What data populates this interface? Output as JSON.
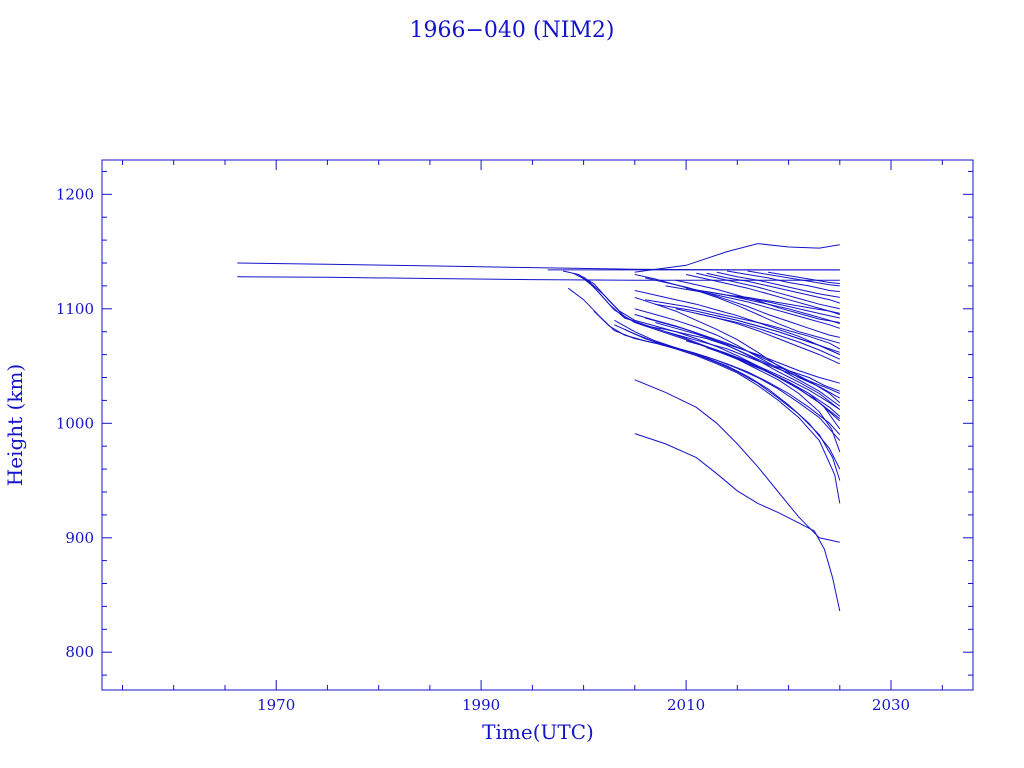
{
  "chart_data": {
    "type": "line",
    "title": "1966−040 (NIM2)",
    "xlabel": "Time(UTC)",
    "ylabel": "Height (km)",
    "xlim": [
      1953,
      2038
    ],
    "ylim": [
      767,
      1230
    ],
    "x_ticks": [
      1970,
      1990,
      2010,
      2030
    ],
    "y_ticks": [
      800,
      900,
      1000,
      1100,
      1200
    ],
    "x_minor_step": 5,
    "y_minor_step": 20,
    "grid": false,
    "legend": "none",
    "color": "#1414c8",
    "series": [
      {
        "x": [
          1966.2,
          1975,
          1985,
          1995,
          2005,
          2015,
          2025
        ],
        "y": [
          1140,
          1139,
          1137.5,
          1136,
          1134.5,
          1134,
          1134
        ]
      },
      {
        "x": [
          1966.2,
          1975,
          1985,
          1995,
          2005,
          2015,
          2025
        ],
        "y": [
          1128,
          1127.5,
          1126.5,
          1125.5,
          1125,
          1125,
          1125
        ]
      },
      {
        "x": [
          1996.5,
          2025
        ],
        "y": [
          1134,
          1134
        ]
      },
      {
        "x": [
          2005,
          2010,
          2014,
          2017,
          2020,
          2023,
          2025
        ],
        "y": [
          1132,
          1138,
          1150,
          1157,
          1154,
          1153,
          1156
        ]
      },
      {
        "x": [
          1998,
          1999.5,
          2001,
          2002.5,
          2004,
          2006,
          2008,
          2010,
          2012,
          2014,
          2016,
          2018,
          2020,
          2022,
          2023.5,
          2025
        ],
        "y": [
          1133,
          1130,
          1122,
          1107,
          1093,
          1085,
          1082,
          1078,
          1074,
          1068,
          1060,
          1052,
          1046,
          1040,
          1033,
          1028
        ]
      },
      {
        "x": [
          1999,
          2000.5,
          2002,
          2003.5,
          2005,
          2007,
          2009,
          2011,
          2013,
          2015,
          2017,
          2019,
          2021,
          2023,
          2025
        ],
        "y": [
          1131,
          1124,
          1112,
          1098,
          1090,
          1085,
          1080,
          1074,
          1067,
          1059,
          1050,
          1040,
          1030,
          1018,
          1002
        ]
      },
      {
        "x": [
          1999.5,
          2001,
          2002.5,
          2004,
          2006,
          2008,
          2010,
          2012,
          2014,
          2016,
          2018,
          2020,
          2022,
          2023.5,
          2025
        ],
        "y": [
          1130,
          1119,
          1104,
          1092,
          1086,
          1080,
          1074,
          1067,
          1060,
          1052,
          1045,
          1036,
          1026,
          1014,
          995
        ]
      },
      {
        "x": [
          2000,
          2001.5,
          2003,
          2005,
          2007,
          2009,
          2011,
          2013,
          2015,
          2017,
          2019,
          2021,
          2023,
          2024.2,
          2025
        ],
        "y": [
          1128,
          1114,
          1099,
          1088,
          1082,
          1076,
          1070,
          1063,
          1056,
          1047,
          1038,
          1026,
          1010,
          995,
          975
        ]
      },
      {
        "x": [
          1998.5,
          2000,
          2001.5,
          2003,
          2005,
          2007,
          2009,
          2011,
          2013,
          2015,
          2017,
          2019,
          2021,
          2023,
          2024.5,
          2025
        ],
        "y": [
          1118,
          1108,
          1094,
          1081,
          1074,
          1070,
          1065,
          1059,
          1052,
          1044,
          1033,
          1020,
          1005,
          985,
          955,
          930
        ]
      },
      {
        "x": [
          2001,
          2002.5,
          2004,
          2006,
          2008,
          2010,
          2012,
          2014,
          2016,
          2018,
          2020,
          2022,
          2024,
          2025
        ],
        "y": [
          1098,
          1085,
          1077,
          1072,
          1068,
          1063,
          1057,
          1050,
          1041,
          1030,
          1016,
          1000,
          978,
          960
        ]
      },
      {
        "x": [
          2003,
          2005,
          2007,
          2009,
          2011,
          2013,
          2015,
          2017,
          2019,
          2021,
          2023,
          2024.3,
          2025
        ],
        "y": [
          1090,
          1080,
          1072,
          1066,
          1060,
          1053,
          1045,
          1035,
          1022,
          1008,
          990,
          970,
          950
        ]
      },
      {
        "x": [
          2003,
          2005,
          2007,
          2009,
          2011,
          2013,
          2015,
          2017,
          2019,
          2021,
          2023,
          2025
        ],
        "y": [
          1086,
          1078,
          1071,
          1066,
          1061,
          1055,
          1048,
          1040,
          1030,
          1018,
          1005,
          985
        ]
      },
      {
        "x": [
          2004,
          2006,
          2008,
          2010,
          2012,
          2014,
          2016,
          2018,
          2020,
          2022,
          2024,
          2025
        ],
        "y": [
          1082,
          1074,
          1068,
          1063,
          1058,
          1052,
          1045,
          1036,
          1026,
          1014,
          1000,
          990
        ]
      },
      {
        "x": [
          2005,
          2007,
          2009,
          2011,
          2013,
          2015,
          2017,
          2019,
          2021,
          2023,
          2025
        ],
        "y": [
          1110,
          1104,
          1098,
          1090,
          1082,
          1073,
          1062,
          1050,
          1040,
          1032,
          1022
        ]
      },
      {
        "x": [
          2005,
          2007,
          2009,
          2011,
          2013,
          2015,
          2017,
          2019,
          2021,
          2023,
          2025
        ],
        "y": [
          1100,
          1095,
          1090,
          1084,
          1077,
          1068,
          1058,
          1048,
          1038,
          1028,
          1015
        ]
      },
      {
        "x": [
          2005,
          2007,
          2009,
          2011,
          2013,
          2015,
          2017,
          2019,
          2021,
          2023,
          2025
        ],
        "y": [
          1095,
          1090,
          1085,
          1079,
          1072,
          1064,
          1055,
          1045,
          1036,
          1026,
          1012
        ]
      },
      {
        "x": [
          2006,
          2008,
          2010,
          2012,
          2014,
          2016,
          2018,
          2020,
          2022,
          2024,
          2025
        ],
        "y": [
          1092,
          1087,
          1082,
          1076,
          1070,
          1063,
          1055,
          1046,
          1037,
          1026,
          1018
        ]
      },
      {
        "x": [
          2007,
          2009,
          2011,
          2013,
          2015,
          2017,
          2019,
          2021,
          2023,
          2025
        ],
        "y": [
          1088,
          1083,
          1078,
          1072,
          1066,
          1060,
          1053,
          1046,
          1040,
          1035
        ]
      },
      {
        "x": [
          2008,
          2010,
          2012,
          2014,
          2016,
          2018,
          2020,
          2022,
          2024,
          2025
        ],
        "y": [
          1080,
          1075,
          1070,
          1065,
          1058,
          1051,
          1044,
          1037,
          1030,
          1026
        ]
      },
      {
        "x": [
          2005,
          2007,
          2009,
          2011,
          2013,
          2015,
          2017,
          2019,
          2021,
          2023,
          2025
        ],
        "y": [
          1130,
          1126,
          1121,
          1116,
          1110,
          1103,
          1095,
          1087,
          1080,
          1075,
          1070
        ]
      },
      {
        "x": [
          2006,
          2008,
          2010,
          2012,
          2014,
          2016,
          2018,
          2020,
          2022,
          2024,
          2025
        ],
        "y": [
          1127,
          1123,
          1119,
          1114,
          1108,
          1102,
          1095,
          1089,
          1083,
          1077,
          1075
        ]
      },
      {
        "x": [
          2005,
          2007,
          2009,
          2011,
          2013,
          2015,
          2017,
          2019,
          2021,
          2023,
          2025
        ],
        "y": [
          1116,
          1112,
          1108,
          1104,
          1099,
          1094,
          1088,
          1082,
          1076,
          1068,
          1060
        ]
      },
      {
        "x": [
          2006,
          2008,
          2010,
          2012,
          2014,
          2016,
          2018,
          2020,
          2022,
          2024,
          2025
        ],
        "y": [
          1108,
          1105,
          1102,
          1098,
          1094,
          1090,
          1086,
          1081,
          1076,
          1070,
          1065
        ]
      },
      {
        "x": [
          2007,
          2009,
          2011,
          2013,
          2015,
          2017,
          2019,
          2021,
          2023,
          2025
        ],
        "y": [
          1104,
          1101,
          1098,
          1094,
          1090,
          1085,
          1080,
          1074,
          1068,
          1060
        ]
      },
      {
        "x": [
          2009,
          2011,
          2013,
          2015,
          2017,
          2019,
          2021,
          2023,
          2025
        ],
        "y": [
          1125,
          1121,
          1117,
          1112,
          1107,
          1101,
          1096,
          1091,
          1088
        ]
      },
      {
        "x": [
          2010,
          2012,
          2014,
          2016,
          2018,
          2020,
          2022,
          2024,
          2025
        ],
        "y": [
          1130,
          1126,
          1122,
          1118,
          1113,
          1108,
          1103,
          1098,
          1095
        ]
      },
      {
        "x": [
          2011,
          2013,
          2015,
          2017,
          2019,
          2021,
          2023,
          2025
        ],
        "y": [
          1131,
          1127,
          1123,
          1119,
          1114,
          1109,
          1104,
          1100
        ]
      },
      {
        "x": [
          2012,
          2014,
          2016,
          2018,
          2020,
          2022,
          2024,
          2025
        ],
        "y": [
          1131,
          1127,
          1124,
          1120,
          1116,
          1112,
          1108,
          1105
        ]
      },
      {
        "x": [
          2013,
          2015,
          2017,
          2019,
          2021,
          2023,
          2025
        ],
        "y": [
          1132,
          1128,
          1125,
          1121,
          1117,
          1113,
          1110
        ]
      },
      {
        "x": [
          2014,
          2016,
          2018,
          2020,
          2022,
          2024,
          2025
        ],
        "y": [
          1133,
          1130,
          1127,
          1123,
          1120,
          1116,
          1115
        ]
      },
      {
        "x": [
          2016,
          2018,
          2020,
          2022,
          2024,
          2025
        ],
        "y": [
          1133,
          1130,
          1127,
          1124,
          1121,
          1120
        ]
      },
      {
        "x": [
          2018,
          2020,
          2022,
          2024,
          2025
        ],
        "y": [
          1132,
          1129,
          1126,
          1123,
          1122
        ]
      },
      {
        "x": [
          2008,
          2010,
          2012,
          2014,
          2016,
          2018,
          2020,
          2022,
          2024,
          2025
        ],
        "y": [
          1120,
          1117,
          1114,
          1110,
          1106,
          1101,
          1096,
          1091,
          1086,
          1083
        ]
      },
      {
        "x": [
          2010,
          2012,
          2014,
          2016,
          2018,
          2020,
          2022,
          2024,
          2025
        ],
        "y": [
          1118,
          1115,
          1112,
          1108,
          1104,
          1100,
          1095,
          1090,
          1087
        ]
      },
      {
        "x": [
          2012,
          2014,
          2016,
          2018,
          2020,
          2022,
          2024,
          2025
        ],
        "y": [
          1115,
          1112,
          1109,
          1106,
          1102,
          1098,
          1094,
          1092
        ]
      },
      {
        "x": [
          2014,
          2016,
          2018,
          2020,
          2022,
          2024,
          2025
        ],
        "y": [
          1112,
          1110,
          1107,
          1104,
          1101,
          1098,
          1096
        ]
      },
      {
        "x": [
          2009,
          2011,
          2013,
          2015,
          2017,
          2019,
          2021,
          2023,
          2025
        ],
        "y": [
          1100,
          1096,
          1092,
          1087,
          1081,
          1074,
          1067,
          1060,
          1052
        ]
      },
      {
        "x": [
          2011,
          2013,
          2015,
          2017,
          2019,
          2021,
          2023,
          2025
        ],
        "y": [
          1096,
          1092,
          1088,
          1083,
          1077,
          1071,
          1064,
          1056
        ]
      },
      {
        "x": [
          2013,
          2015,
          2017,
          2019,
          2021,
          2023,
          2025
        ],
        "y": [
          1094,
          1090,
          1085,
          1080,
          1074,
          1068,
          1062
        ]
      },
      {
        "x": [
          2010,
          2012,
          2014,
          2016,
          2018,
          2020,
          2022,
          2024,
          2025
        ],
        "y": [
          1072,
          1067,
          1061,
          1054,
          1046,
          1038,
          1029,
          1018,
          1012
        ]
      },
      {
        "x": [
          2011,
          2013,
          2015,
          2017,
          2019,
          2021,
          2023,
          2025
        ],
        "y": [
          1070,
          1064,
          1057,
          1049,
          1040,
          1030,
          1018,
          1004
        ]
      },
      {
        "x": [
          2012,
          2014,
          2016,
          2018,
          2020,
          2022,
          2024,
          2025
        ],
        "y": [
          1066,
          1060,
          1053,
          1045,
          1036,
          1026,
          1014,
          1006
        ]
      },
      {
        "x": [
          2005,
          2008,
          2011,
          2013,
          2015,
          2017,
          2019,
          2021,
          2023,
          2025
        ],
        "y": [
          1038,
          1027,
          1014,
          1000,
          982,
          962,
          940,
          918,
          900,
          896
        ]
      },
      {
        "x": [
          2005,
          2008,
          2011,
          2013,
          2015,
          2017,
          2019,
          2021,
          2022.5,
          2023.5,
          2024.3,
          2025
        ],
        "y": [
          991,
          982,
          970,
          956,
          941,
          930,
          922,
          913,
          906,
          890,
          865,
          836
        ]
      }
    ]
  }
}
